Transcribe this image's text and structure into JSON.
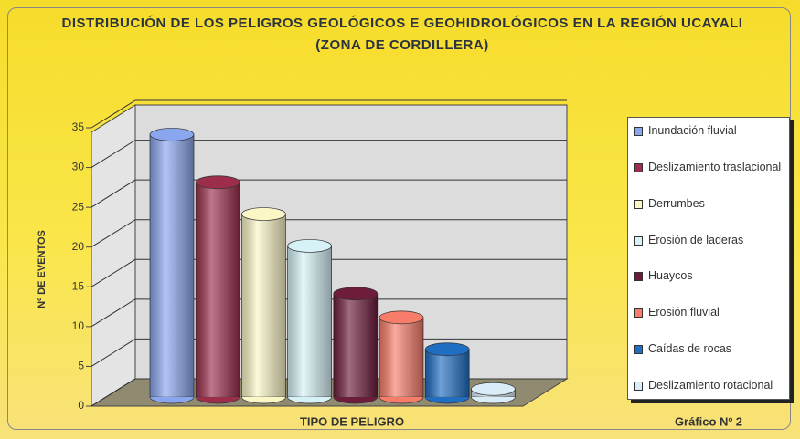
{
  "chart_data": {
    "type": "bar3d",
    "title": "DISTRIBUCIÓN DE LOS PELIGROS GEOLÓGICOS E GEOHIDROLÓGICOS EN LA REGIÓN UCAYALI (ZONA DE CORDILLERA)",
    "xlabel": "TIPO DE PELIGRO",
    "ylabel": "Nº DE EVENTOS",
    "annotation": "Gráfico Nº 2",
    "categories": [
      "Inundación fluvial",
      "Deslizamiento traslacional",
      "Derrumbes",
      "Erosión de laderas",
      "Huaycos",
      "Erosión fluvial",
      "Caídas de rocas",
      "Deslizamiento rotacional"
    ],
    "values": [
      33,
      27,
      23,
      19,
      13,
      10,
      6,
      1
    ],
    "colors": [
      "#8aa6ee",
      "#9c2e4c",
      "#fbf6c6",
      "#d6f2f6",
      "#6e1c3c",
      "#f77c6a",
      "#1f6ec2",
      "#d9ecf8"
    ],
    "ylim": [
      0,
      35
    ],
    "yticks": [
      0,
      5,
      10,
      15,
      20,
      25,
      30,
      35
    ],
    "grid": true,
    "legend": "right"
  }
}
